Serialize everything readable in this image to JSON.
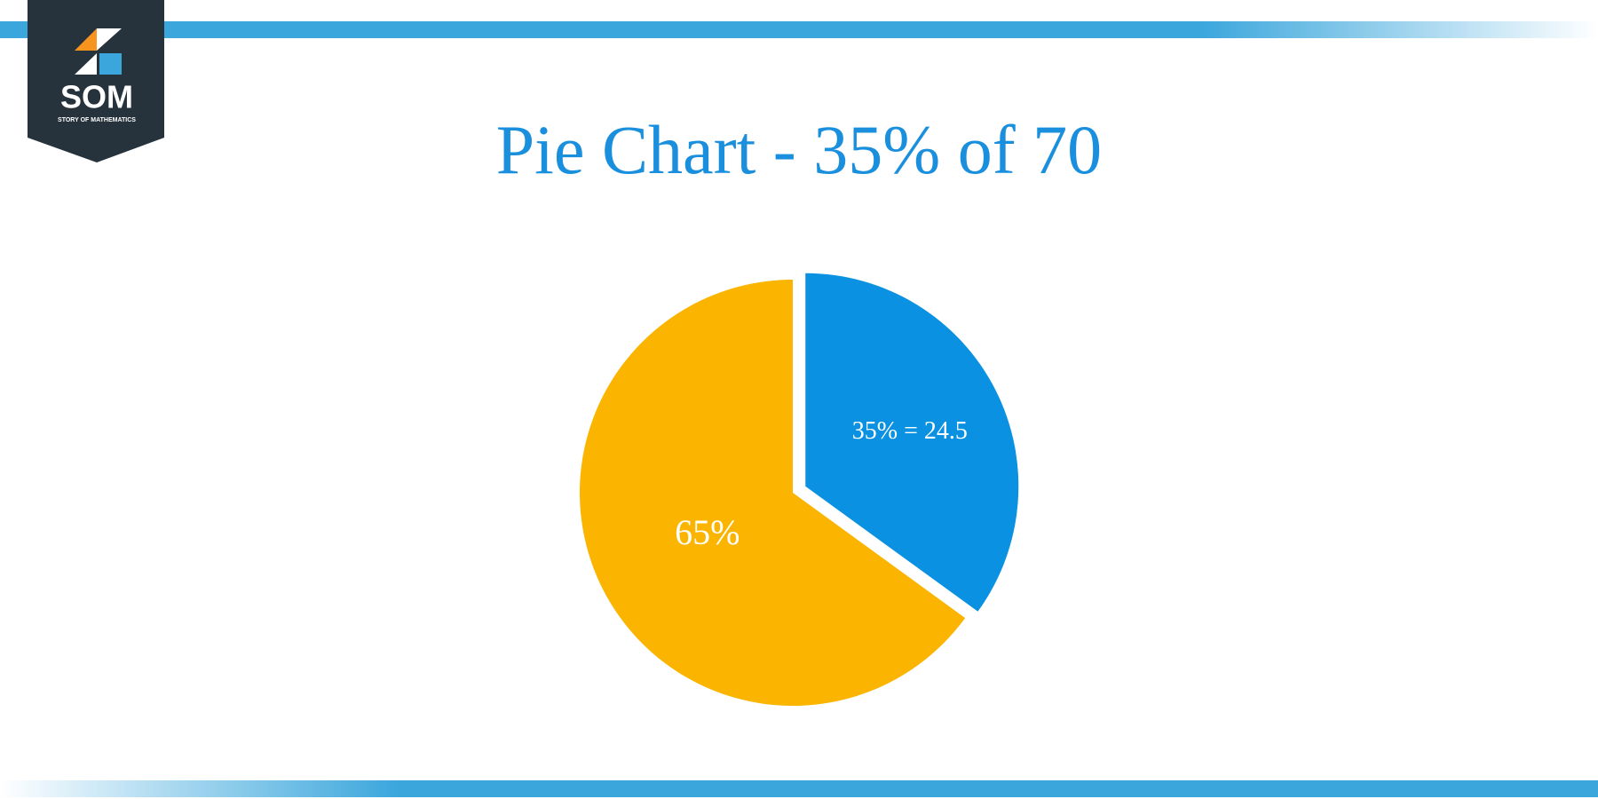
{
  "logo": {
    "text": "SOM",
    "subtitle": "STORY OF MATHEMATICS"
  },
  "chart_data": {
    "type": "pie",
    "title": "Pie Chart - 35% of 70",
    "values": [
      35,
      65
    ],
    "value_labels": [
      "35% = 24.5",
      "65%"
    ],
    "colors": [
      "#0a91e2",
      "#fbb500"
    ]
  }
}
